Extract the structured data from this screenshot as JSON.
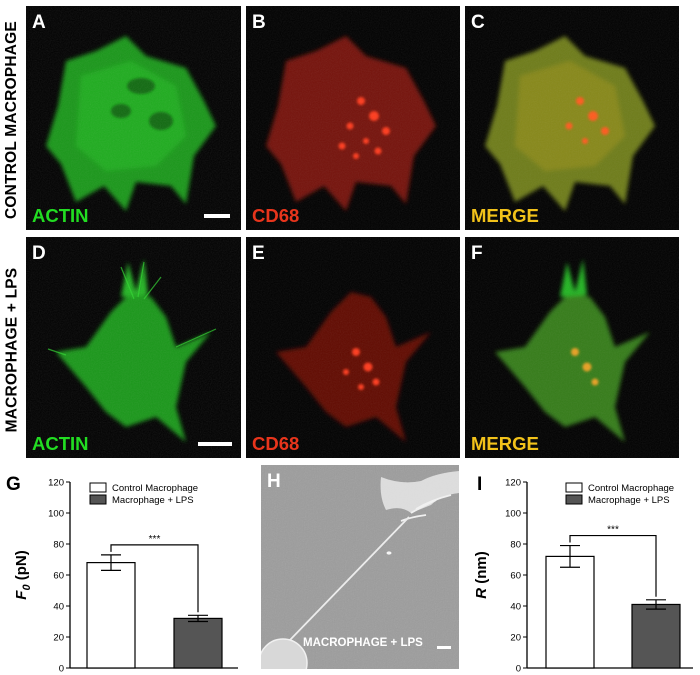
{
  "rows": [
    {
      "label": "CONTROL MACROPHAGE"
    },
    {
      "label": "MACROPHAGE + LPS"
    }
  ],
  "panels": [
    {
      "letter": "A",
      "channel": "ACTIN"
    },
    {
      "letter": "B",
      "channel": "CD68"
    },
    {
      "letter": "C",
      "channel": "MERGE"
    },
    {
      "letter": "D",
      "channel": "ACTIN"
    },
    {
      "letter": "E",
      "channel": "CD68"
    },
    {
      "letter": "F",
      "channel": "MERGE"
    }
  ],
  "colors": {
    "actin": "#22dd22",
    "cd68": "#e8351c",
    "merge": "#f2c21a",
    "bar_control": "#ffffff",
    "bar_lps": "#555555"
  },
  "panel_h": {
    "letter": "H",
    "caption": "MACROPHAGE + LPS"
  },
  "chart_data": [
    {
      "letter": "G",
      "type": "bar",
      "ylabel_main": "F",
      "ylabel_sub": "0",
      "ylabel_unit": " (pN)",
      "ylim": [
        0,
        120
      ],
      "yticks": [
        "0",
        "20",
        "40",
        "60",
        "80",
        "100",
        "120"
      ],
      "series": [
        {
          "name": "Control Macrophage",
          "value": 68,
          "error": 5
        },
        {
          "name": "Macrophage + LPS",
          "value": 32,
          "error": 2
        }
      ],
      "significance": "***",
      "legend_position": "top"
    },
    {
      "letter": "I",
      "type": "bar",
      "ylabel_main": "R",
      "ylabel_sub": "",
      "ylabel_unit": " (nm)",
      "ylim": [
        0,
        120
      ],
      "yticks": [
        "0",
        "20",
        "40",
        "60",
        "80",
        "100",
        "120"
      ],
      "series": [
        {
          "name": "Control Macrophage",
          "value": 72,
          "error": 7
        },
        {
          "name": "Macrophage + LPS",
          "value": 41,
          "error": 3
        }
      ],
      "significance": "***",
      "legend_position": "top"
    }
  ]
}
